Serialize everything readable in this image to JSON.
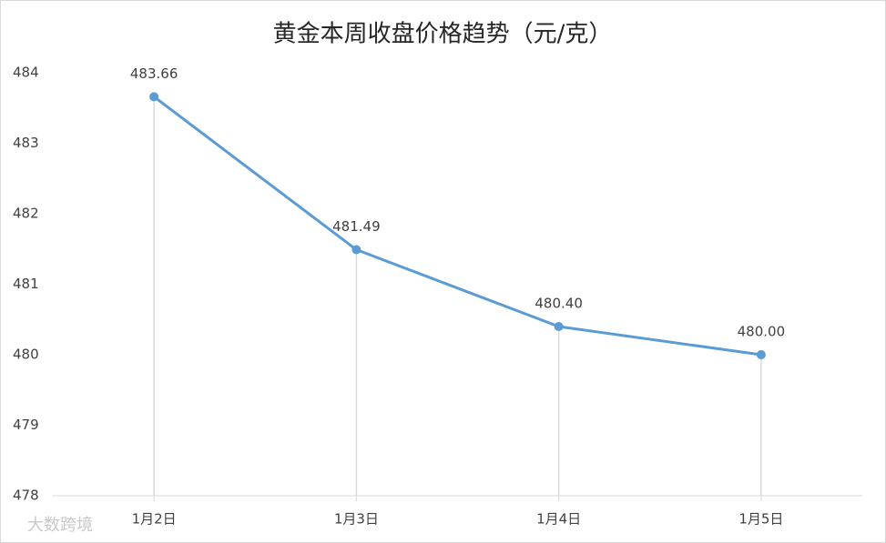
{
  "chart_data": {
    "type": "line",
    "title": "黄金本周收盘价格趋势（元/克）",
    "categories": [
      "1月2日",
      "1月3日",
      "1月4日",
      "1月5日"
    ],
    "values": [
      483.66,
      481.49,
      480.4,
      480.0
    ],
    "value_labels": [
      "483.66",
      "481.49",
      "480.40",
      "480.00"
    ],
    "color": "#5b9bd5",
    "ylim": [
      478,
      484
    ],
    "yticks": [
      478,
      479,
      480,
      481,
      482,
      483,
      484
    ],
    "drop_lines": true,
    "watermark": "大数跨境"
  }
}
